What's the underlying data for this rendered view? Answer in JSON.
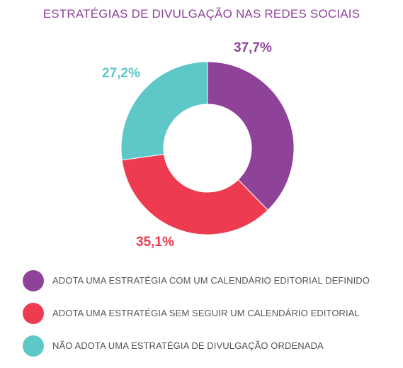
{
  "chart_data": {
    "type": "pie",
    "title": "ESTRATÉGIAS DE DIVULGAÇÃO NAS REDES SOCIAIS",
    "slices": [
      {
        "label": "ADOTA UMA ESTRATÉGIA COM UM CALENDÁRIO EDITORIAL DEFINIDO",
        "value": 37.7,
        "value_label": "37,7%",
        "color": "#8e4398"
      },
      {
        "label": "ADOTA UMA ESTRATÉGIA SEM SEGUIR UM CALENDÁRIO EDITORIAL",
        "value": 35.1,
        "value_label": "35,1%",
        "color": "#ee3b4f"
      },
      {
        "label": "NÃO ADOTA UMA ESTRATÉGIA DE DIVULGAÇÃO ORDENADA",
        "value": 27.2,
        "value_label": "27,2%",
        "color": "#5ec8c8"
      }
    ],
    "legend_position": "bottom"
  }
}
